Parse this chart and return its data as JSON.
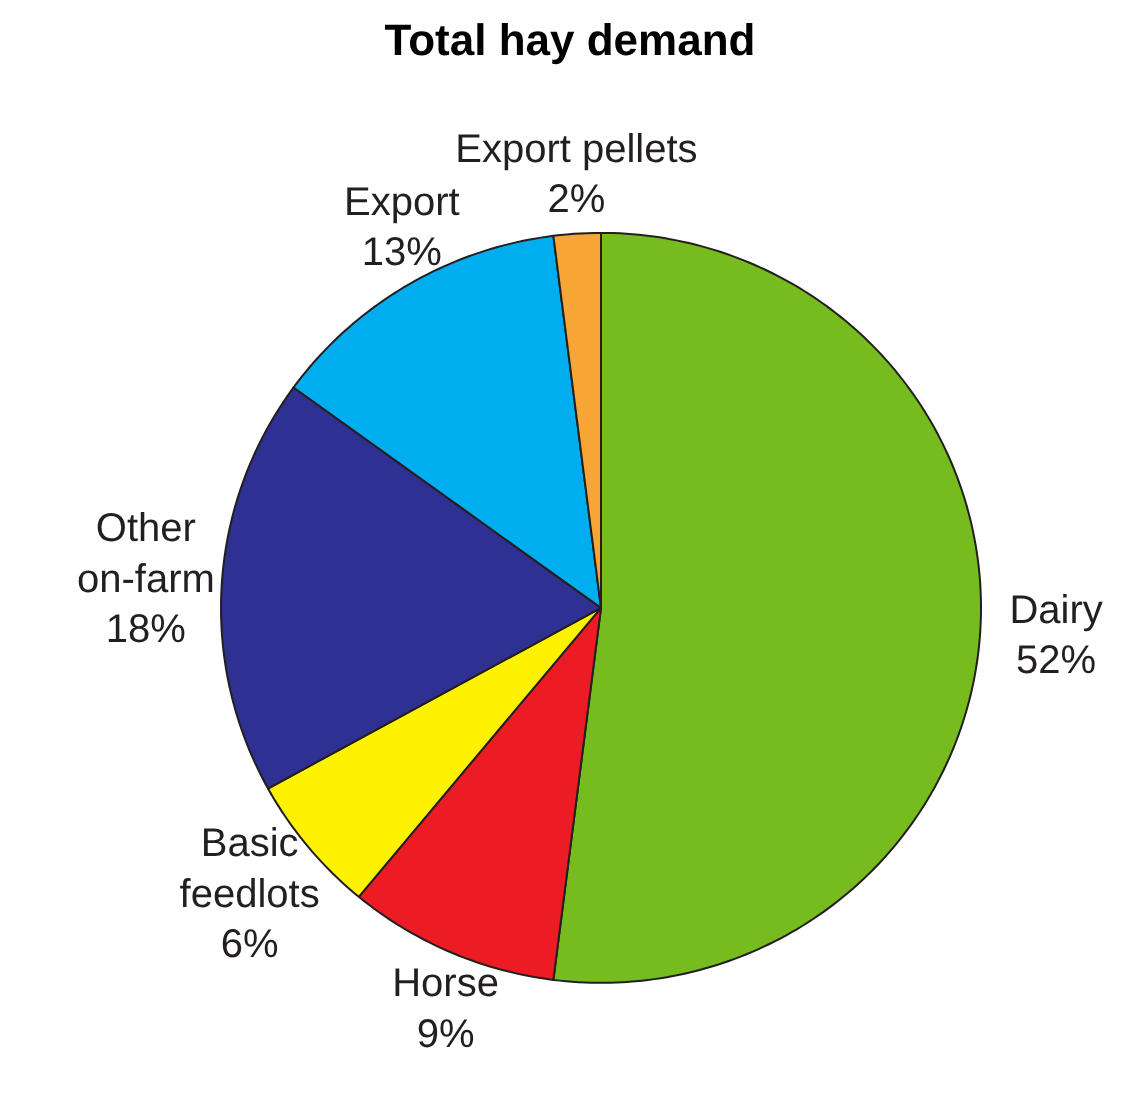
{
  "chart_data": {
    "type": "pie",
    "title": "Total hay demand",
    "categories": [
      "Dairy",
      "Horse",
      "Basic feedlots",
      "Other on-farm",
      "Export",
      "Export pellets"
    ],
    "values": [
      52,
      9,
      6,
      18,
      13,
      2
    ],
    "value_labels": [
      "52%",
      "9%",
      "6%",
      "18%",
      "13%",
      "2%"
    ],
    "colors": [
      "#77bc1f",
      "#ed1c24",
      "#fff200",
      "#2e3192",
      "#00aeef",
      "#f7a535"
    ]
  }
}
